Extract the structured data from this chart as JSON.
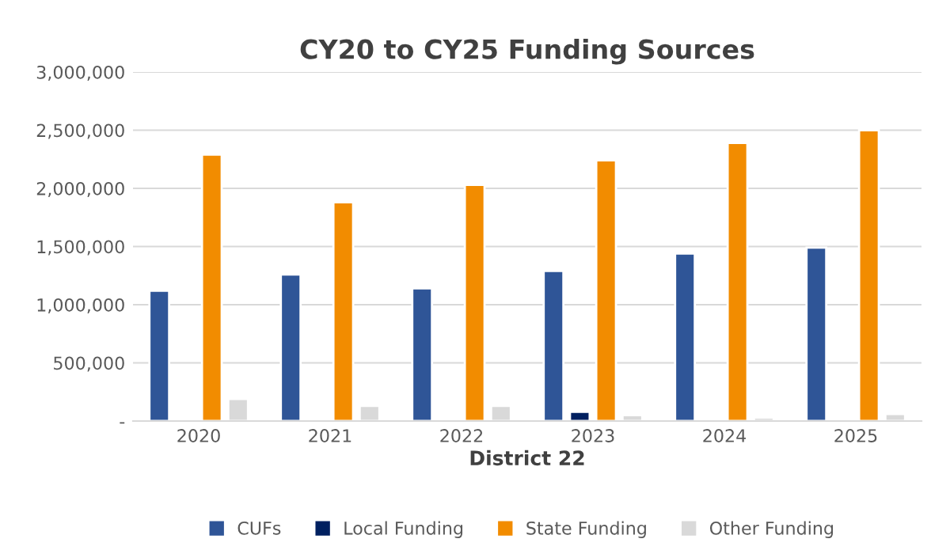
{
  "chart_data": {
    "type": "bar",
    "title": "CY20 to CY25 Funding Sources",
    "xlabel": "District 22",
    "categories": [
      "2020",
      "2021",
      "2022",
      "2023",
      "2024",
      "2025"
    ],
    "series": [
      {
        "name": "CUFs",
        "color": "#2f5597",
        "values": [
          1120000,
          1260000,
          1140000,
          1290000,
          1440000,
          1490000
        ]
      },
      {
        "name": "Local Funding",
        "color": "#002060",
        "values": [
          null,
          null,
          null,
          80000,
          null,
          null
        ]
      },
      {
        "name": "State Funding",
        "color": "#f28c00",
        "values": [
          2290000,
          1880000,
          2030000,
          2240000,
          2390000,
          2500000
        ]
      },
      {
        "name": "Other Funding",
        "color": "#d9d9d9",
        "values": [
          190000,
          130000,
          130000,
          50000,
          30000,
          60000
        ]
      }
    ],
    "ylim": [
      0,
      3000000
    ],
    "yticks": [
      {
        "value": 0,
        "label": "-"
      },
      {
        "value": 500000,
        "label": "500,000"
      },
      {
        "value": 1000000,
        "label": "1,000,000"
      },
      {
        "value": 1500000,
        "label": "1,500,000"
      },
      {
        "value": 2000000,
        "label": "2,000,000"
      },
      {
        "value": 2500000,
        "label": "2,500,000"
      },
      {
        "value": 3000000,
        "label": "3,000,000"
      }
    ],
    "grid": "y",
    "legend": "bottom"
  }
}
